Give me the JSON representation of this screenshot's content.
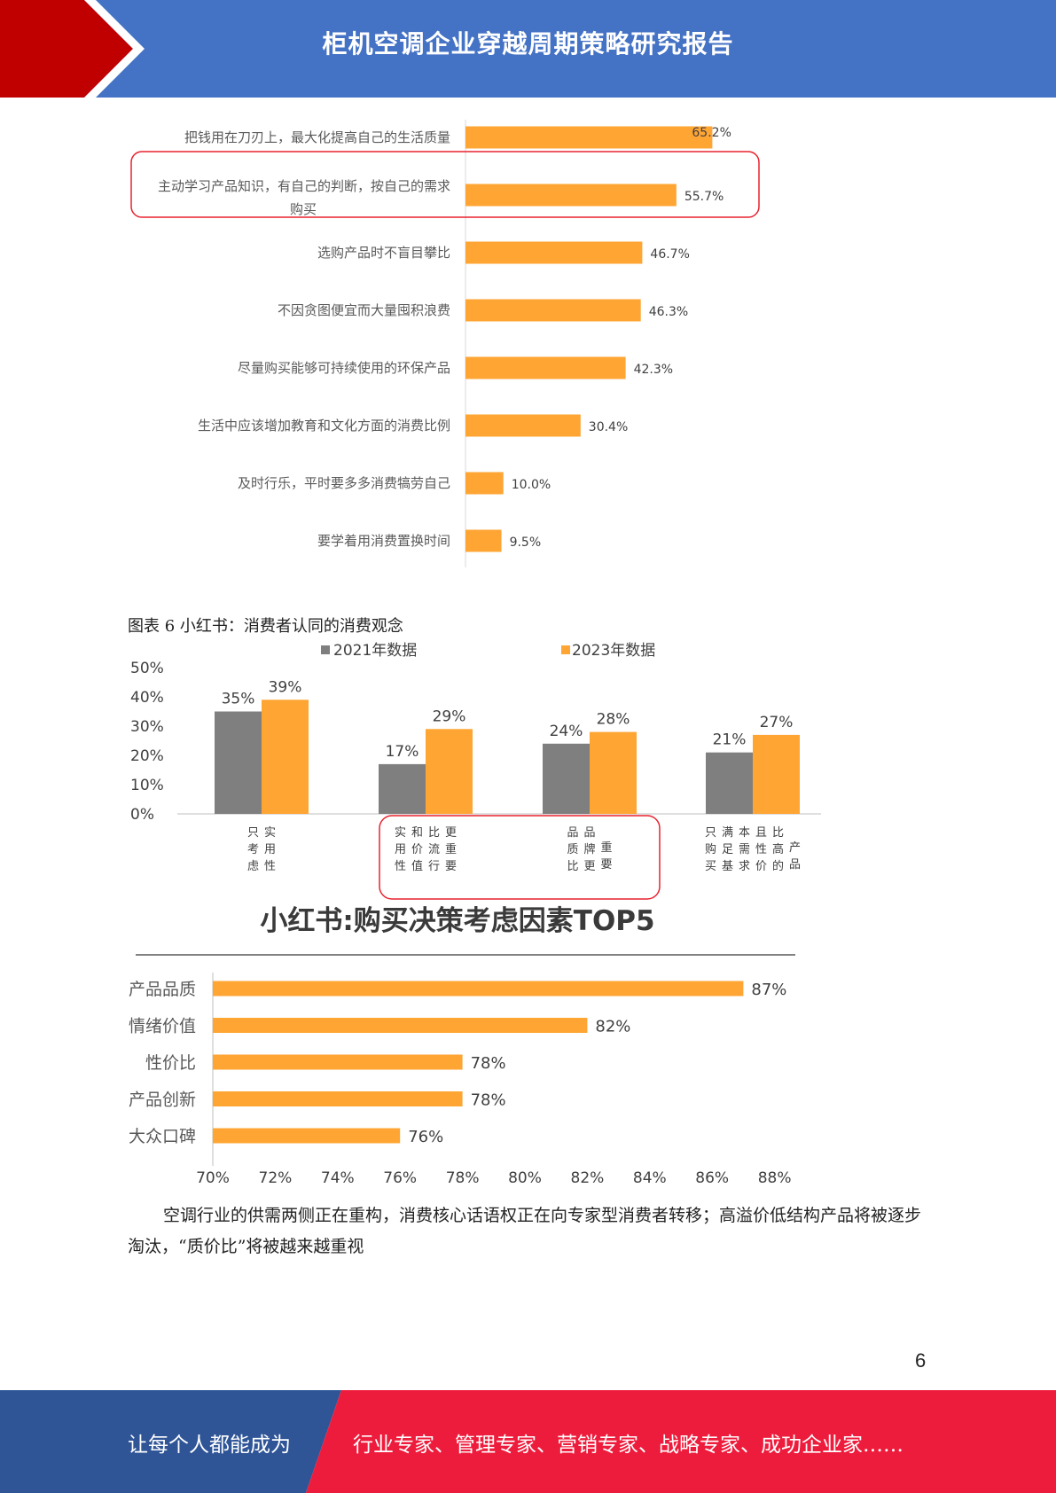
{
  "header": {
    "title": "柜机空调企业穿越周期策略研究报告",
    "accent_color": "#c00000",
    "bar_color": "#4472c4"
  },
  "chart_data": [
    {
      "type": "bar",
      "orientation": "horizontal",
      "categories": [
        "把钱用在刀刃上，最大化提高自己的生活质量",
        "主动学习产品知识，有自己的判断，按自己的需求购买",
        "选购产品时不盲目攀比",
        "不因贪图便宜而大量囤积浪费",
        "尽量购买能够可持续使用的环保产品",
        "生活中应该增加教育和文化方面的消费比例",
        "及时行乐，平时要多多消费犒劳自己",
        "要学着用消费置换时间"
      ],
      "category_lines": [
        [
          "把钱用在刀刃上，最大化提高自己的生活质量"
        ],
        [
          "主动学习产品知识，有自己的判断，按自己的需求",
          "购买"
        ],
        [
          "选购产品时不盲目攀比"
        ],
        [
          "不因贪图便宜而大量囤积浪费"
        ],
        [
          "尽量购买能够可持续使用的环保产品"
        ],
        [
          "生活中应该增加教育和文化方面的消费比例"
        ],
        [
          "及时行乐，平时要多多消费犒劳自己"
        ],
        [
          "要学着用消费置换时间"
        ]
      ],
      "values": [
        65.2,
        55.7,
        46.7,
        46.3,
        42.3,
        30.4,
        10.0,
        9.5
      ],
      "value_labels": [
        "65.2%",
        "55.7%",
        "46.7%",
        "46.3%",
        "42.3%",
        "30.4%",
        "10.0%",
        "9.5%"
      ],
      "highlighted_index": 1,
      "bar_color": "#ffa533",
      "highlight_color": "#e8222e",
      "xlim": [
        0,
        70
      ]
    },
    {
      "type": "bar",
      "categories": [
        [
          "只考虑",
          "实用性"
        ],
        [
          "实用性",
          "和价值",
          "比流行",
          "更重要"
        ],
        [
          "品质比",
          "品牌更",
          "重要"
        ],
        [
          "只购买",
          "满足基",
          "本需求",
          "且性价",
          "比高的",
          "产品"
        ]
      ],
      "series": [
        {
          "name": "2021年数据",
          "values": [
            35,
            17,
            24,
            21
          ],
          "labels": [
            "35%",
            "17%",
            "24%",
            "21%"
          ],
          "color": "#7f7f7f"
        },
        {
          "name": "2023年数据",
          "values": [
            39,
            29,
            28,
            27
          ],
          "labels": [
            "39%",
            "29%",
            "28%",
            "27%"
          ],
          "color": "#ffa533"
        }
      ],
      "ylim": [
        0,
        50
      ],
      "yticks": [
        "0%",
        "10%",
        "20%",
        "30%",
        "40%",
        "50%"
      ],
      "legend": "top",
      "highlighted_indices": [
        1,
        2
      ]
    },
    {
      "type": "bar",
      "orientation": "horizontal",
      "title": "小红书:购买决策考虑因素TOP5",
      "categories": [
        "产品品质",
        "情绪价值",
        "性价比",
        "产品创新",
        "大众口碑"
      ],
      "values": [
        87,
        82,
        78,
        78,
        76
      ],
      "value_labels": [
        "87%",
        "82%",
        "78%",
        "78%",
        "76%"
      ],
      "xlim": [
        70,
        88
      ],
      "xticks": [
        "70%",
        "72%",
        "74%",
        "76%",
        "78%",
        "80%",
        "82%",
        "84%",
        "86%",
        "88%"
      ],
      "bar_color": "#ffa533"
    }
  ],
  "caption": "图表 6  小红书：消费者认同的消费观念",
  "paragraph": "空调行业的供需两侧正在重构，消费核心话语权正在向专家型消费者转移；高溢价低结构产品将被逐步淘汰，“质价比”将被越来越重视",
  "page_number": "6",
  "footer": {
    "left_text": "让每个人都能成为",
    "right_text": "行业专家、管理专家、营销专家、战略专家、成功企业家……",
    "left_color": "#2f5597",
    "right_color": "#ee1c3c"
  }
}
